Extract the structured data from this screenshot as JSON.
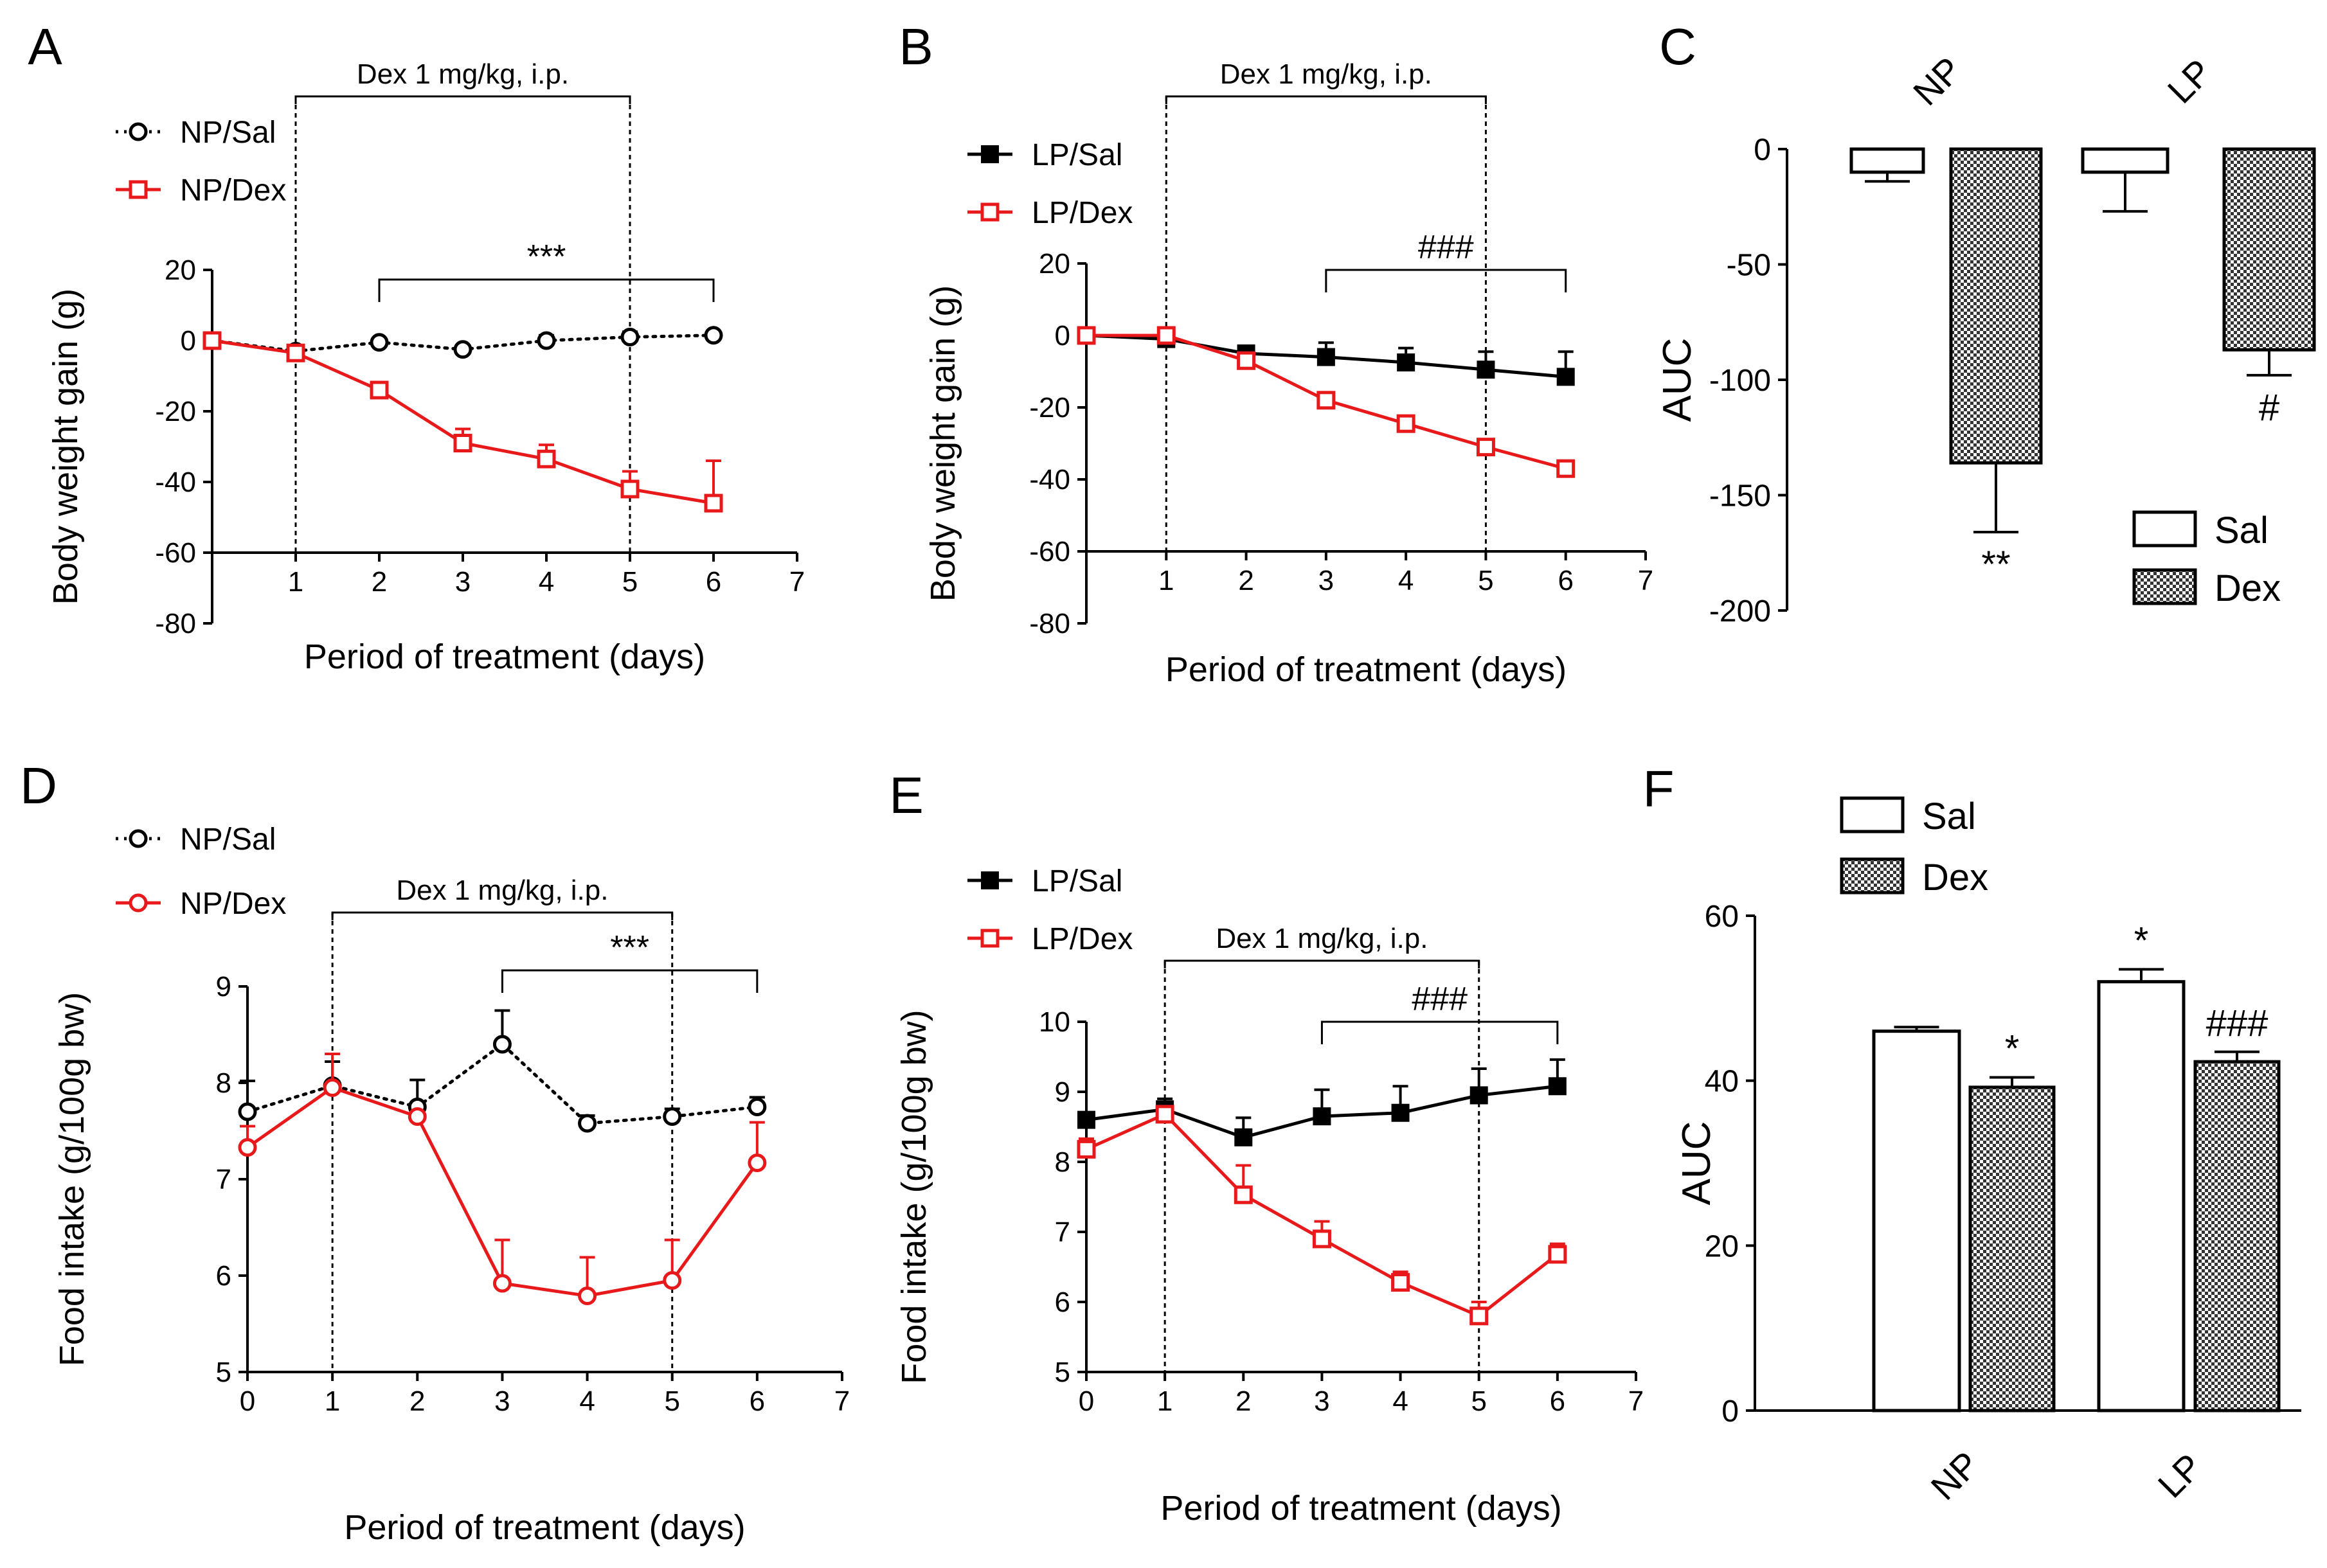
{
  "figure": {
    "description_free": true
  },
  "colors": {
    "black": "#000000",
    "red": "#e8191b",
    "white": "#ffffff",
    "hatch": "#555555"
  },
  "chart_data": [
    {
      "panel": "A",
      "type": "line",
      "ylabel": "Body weight gain (g)",
      "xlabel": "Period of treatment (days)",
      "xlim": [
        0,
        7
      ],
      "ylim": [
        -80,
        20
      ],
      "xticks": [
        "1",
        "2",
        "3",
        "4",
        "5",
        "6",
        "7"
      ],
      "yticks": [
        "20",
        "0",
        "-20",
        "-40",
        "-60",
        "-80"
      ],
      "treatment_label": "Dex 1 mg/kg, i.p.",
      "treatment_days": [
        1,
        5
      ],
      "significance": {
        "label": "***",
        "from": 2,
        "to": 6
      },
      "series": [
        {
          "name": "NP/Sal",
          "style": "dotted",
          "marker": "open-circle",
          "color": "black",
          "x": [
            0,
            1,
            2,
            3,
            4,
            5,
            6
          ],
          "y": [
            0,
            -3,
            -0.5,
            -2.5,
            0,
            1,
            1.5
          ],
          "err": [
            0,
            0,
            0,
            0,
            1.5,
            1.5,
            1
          ]
        },
        {
          "name": "NP/Dex",
          "style": "solid",
          "marker": "open-square",
          "color": "red",
          "x": [
            0,
            1,
            2,
            3,
            4,
            5,
            6
          ],
          "y": [
            0,
            -3.5,
            -14,
            -29,
            -33.5,
            -42,
            -46
          ],
          "err": [
            0,
            1.5,
            1.5,
            4,
            4,
            5,
            12
          ]
        }
      ]
    },
    {
      "panel": "B",
      "type": "line",
      "ylabel": "Body weight gain (g)",
      "xlabel": "Period of treatment (days)",
      "xlim": [
        0,
        7
      ],
      "ylim": [
        -80,
        20
      ],
      "xticks": [
        "1",
        "2",
        "3",
        "4",
        "5",
        "6",
        "7"
      ],
      "yticks": [
        "20",
        "0",
        "-20",
        "-40",
        "-60",
        "-80"
      ],
      "treatment_label": "Dex 1 mg/kg, i.p.",
      "treatment_days": [
        1,
        5
      ],
      "significance": {
        "label": "###",
        "from": 3,
        "to": 6
      },
      "series": [
        {
          "name": "LP/Sal",
          "style": "solid",
          "marker": "filled-square",
          "color": "black",
          "x": [
            0,
            1,
            2,
            3,
            4,
            5,
            6
          ],
          "y": [
            0,
            -1,
            -5,
            -6,
            -7.5,
            -9.5,
            -11.5
          ],
          "err": [
            0,
            1,
            2,
            4,
            4,
            5,
            7
          ]
        },
        {
          "name": "LP/Dex",
          "style": "solid",
          "marker": "open-square",
          "color": "red",
          "x": [
            0,
            1,
            2,
            3,
            4,
            5,
            6
          ],
          "y": [
            0,
            0,
            -7,
            -18,
            -24.5,
            -31,
            -37
          ],
          "err": [
            0,
            0,
            1,
            2,
            2,
            2,
            2
          ]
        }
      ]
    },
    {
      "panel": "C",
      "type": "bar",
      "ylabel": "AUC",
      "ylim": [
        -200,
        0
      ],
      "yticks": [
        "0",
        "-50",
        "-100",
        "-150",
        "-200"
      ],
      "categories": [
        "NP",
        "LP"
      ],
      "series": [
        {
          "name": "Sal",
          "fill": "open",
          "values": [
            -10,
            -10
          ],
          "err": [
            4,
            17
          ],
          "sig": [
            "",
            ""
          ]
        },
        {
          "name": "Dex",
          "fill": "hatched",
          "values": [
            -136,
            -87
          ],
          "err": [
            30,
            11
          ],
          "sig": [
            "**",
            "#"
          ]
        }
      ],
      "legend": [
        "Sal",
        "Dex"
      ]
    },
    {
      "panel": "D",
      "type": "line",
      "ylabel": "Food intake (g/100g bw)",
      "xlabel": "Period of treatment (days)",
      "xlim": [
        0,
        7
      ],
      "ylim": [
        5,
        9
      ],
      "xticks": [
        "0",
        "1",
        "2",
        "3",
        "4",
        "5",
        "6",
        "7"
      ],
      "yticks": [
        "9",
        "8",
        "7",
        "6",
        "5"
      ],
      "treatment_label": "Dex 1 mg/kg, i.p.",
      "treatment_days": [
        1,
        5
      ],
      "significance": {
        "label": "***",
        "from": 3,
        "to": 6
      },
      "series": [
        {
          "name": "NP/Sal",
          "style": "dotted",
          "marker": "open-circle",
          "color": "black",
          "x": [
            0,
            1,
            2,
            3,
            4,
            5,
            6
          ],
          "y": [
            7.7,
            7.97,
            7.75,
            8.4,
            7.58,
            7.65,
            7.75
          ],
          "err": [
            0.32,
            0.25,
            0.28,
            0.35,
            0.08,
            0.08,
            0.1
          ]
        },
        {
          "name": "NP/Dex",
          "style": "solid",
          "marker": "open-circle",
          "color": "red",
          "x": [
            0,
            1,
            2,
            3,
            4,
            5,
            6
          ],
          "y": [
            7.33,
            7.95,
            7.65,
            5.92,
            5.79,
            5.95,
            7.17
          ],
          "err": [
            0.22,
            0.35,
            0,
            0.45,
            0.4,
            0.42,
            0.42
          ]
        }
      ]
    },
    {
      "panel": "E",
      "type": "line",
      "ylabel": "Food intake (g/100g bw)",
      "xlabel": "Period of treatment (days)",
      "xlim": [
        0,
        7
      ],
      "ylim": [
        5,
        10
      ],
      "xticks": [
        "0",
        "1",
        "2",
        "3",
        "4",
        "5",
        "6",
        "7"
      ],
      "yticks": [
        "10",
        "9",
        "8",
        "7",
        "6",
        "5"
      ],
      "treatment_label": "Dex 1 mg/kg, i.p.",
      "treatment_days": [
        1,
        5
      ],
      "significance": {
        "label": "###",
        "from": 3,
        "to": 6
      },
      "series": [
        {
          "name": "LP/Sal",
          "style": "solid",
          "marker": "filled-square",
          "color": "black",
          "x": [
            0,
            1,
            2,
            3,
            4,
            5,
            6
          ],
          "y": [
            8.6,
            8.75,
            8.35,
            8.65,
            8.7,
            8.95,
            9.08
          ],
          "err": [
            0.1,
            0.15,
            0.28,
            0.38,
            0.38,
            0.38,
            0.38
          ]
        },
        {
          "name": "LP/Dex",
          "style": "solid",
          "marker": "open-square",
          "color": "red",
          "x": [
            0,
            1,
            2,
            3,
            4,
            5,
            6
          ],
          "y": [
            8.18,
            8.68,
            7.53,
            6.9,
            6.28,
            5.8,
            6.68
          ],
          "err": [
            0.15,
            0.08,
            0.42,
            0.25,
            0.15,
            0.2,
            0.15
          ]
        }
      ]
    },
    {
      "panel": "F",
      "type": "bar",
      "ylabel": "AUC",
      "ylim": [
        0,
        60
      ],
      "yticks": [
        "60",
        "40",
        "20",
        "0"
      ],
      "categories": [
        "NP",
        "LP"
      ],
      "series": [
        {
          "name": "Sal",
          "fill": "open",
          "values": [
            46,
            52
          ],
          "err": [
            0.5,
            1.5
          ],
          "sig": [
            "",
            "*"
          ]
        },
        {
          "name": "Dex",
          "fill": "hatched",
          "values": [
            39.2,
            42.3
          ],
          "err": [
            1.2,
            1.2
          ],
          "sig": [
            "*",
            "###"
          ]
        }
      ],
      "legend": [
        "Sal",
        "Dex"
      ]
    }
  ]
}
